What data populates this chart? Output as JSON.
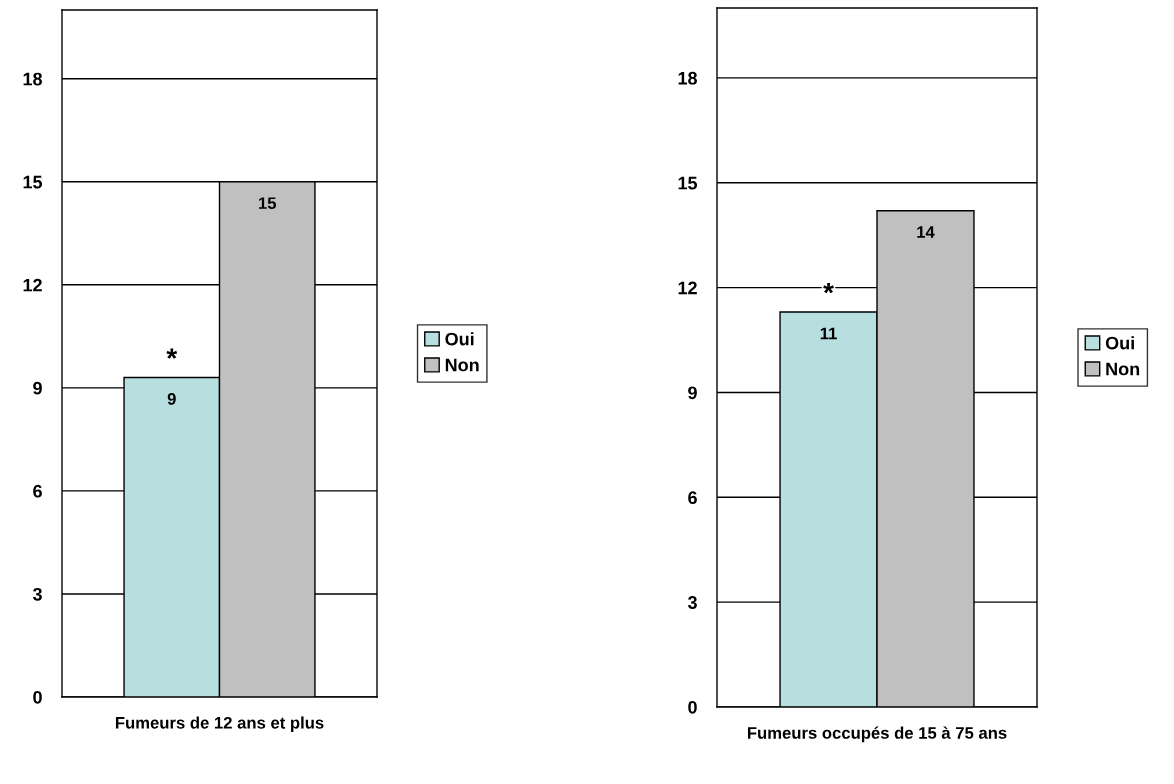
{
  "chart_data": [
    {
      "type": "bar",
      "categories": [
        "Fumeurs de 12 ans et plus"
      ],
      "ylim": [
        0,
        20
      ],
      "yticks": [
        0,
        3,
        6,
        9,
        12,
        15,
        18
      ],
      "grid": "y",
      "legend": "right",
      "series": [
        {
          "name": "Oui",
          "color": "#b8dfe0",
          "values": [
            9.3
          ],
          "value_labels": [
            "9"
          ]
        },
        {
          "name": "Non",
          "color": "#c0c0c0",
          "values": [
            15.0
          ],
          "value_labels": [
            "15"
          ]
        }
      ],
      "annotations": [
        {
          "text": "*",
          "y": 9.3
        }
      ]
    },
    {
      "type": "bar",
      "categories": [
        "Fumeurs occupés de 15 à 75 ans"
      ],
      "ylim": [
        0,
        20
      ],
      "yticks": [
        0,
        3,
        6,
        9,
        12,
        15,
        18
      ],
      "grid": "y",
      "legend": "right",
      "series": [
        {
          "name": "Oui",
          "color": "#b8dfe0",
          "values": [
            11.3
          ],
          "value_labels": [
            "11"
          ]
        },
        {
          "name": "Non",
          "color": "#c0c0c0",
          "values": [
            14.2
          ],
          "value_labels": [
            "14"
          ]
        }
      ],
      "annotations": [
        {
          "text": "*",
          "y": 11.3
        }
      ]
    }
  ]
}
